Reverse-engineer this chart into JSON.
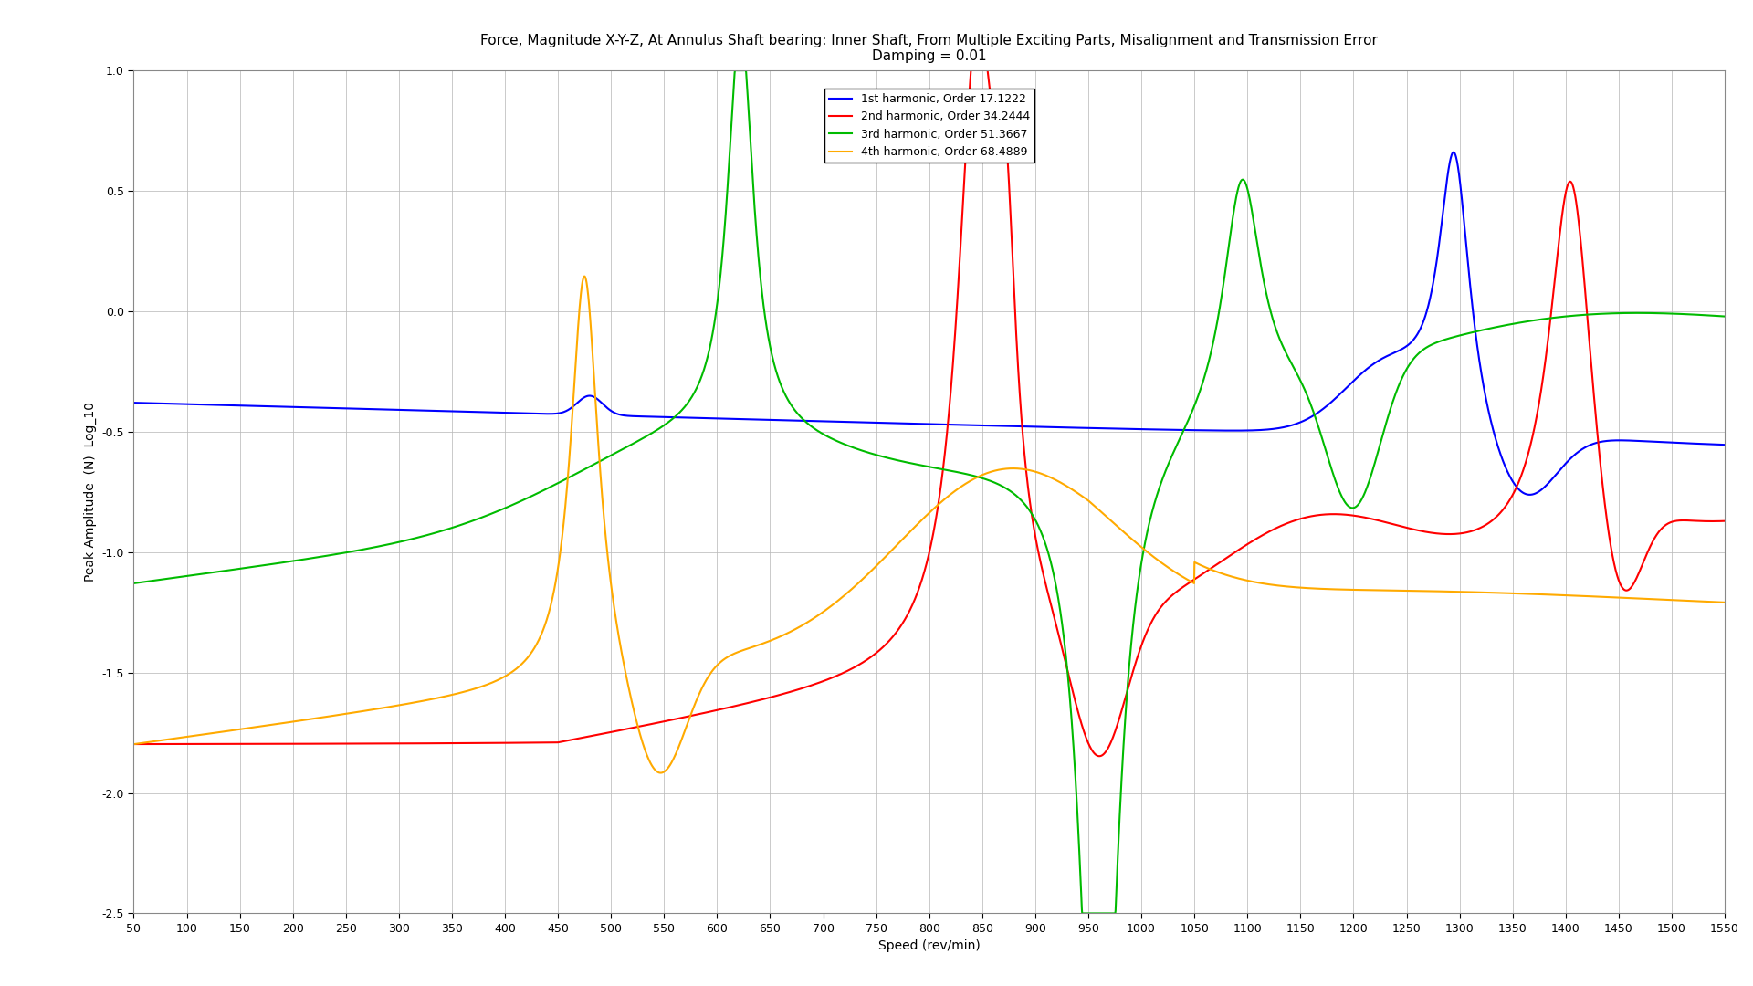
{
  "title_line1": "Force, Magnitude X-Y-Z, At Annulus Shaft bearing: Inner Shaft, From Multiple Exciting Parts, Misalignment and Transmission Error",
  "title_line2": "Damping = 0.01",
  "xlabel": "Speed (rev/min)",
  "ylabel": "Peak Amplitude  (N)  Log_10",
  "xlim": [
    50,
    1550
  ],
  "ylim": [
    -2.5,
    1.0
  ],
  "xticks": [
    50,
    100,
    150,
    200,
    250,
    300,
    350,
    400,
    450,
    500,
    550,
    600,
    650,
    700,
    750,
    800,
    850,
    900,
    950,
    1000,
    1050,
    1100,
    1150,
    1200,
    1250,
    1300,
    1350,
    1400,
    1450,
    1500,
    1550
  ],
  "yticks": [
    -2.5,
    -2.0,
    -1.5,
    -1.0,
    -0.5,
    0.0,
    0.5,
    1.0
  ],
  "colors": {
    "h1": "#0000ff",
    "h2": "#ff0000",
    "h3": "#00bb00",
    "h4": "#ffaa00"
  },
  "legend_labels": [
    "1st harmonic, Order 17.1222",
    "2nd harmonic, Order 34.2444",
    "3rd harmonic, Order 51.3667",
    "4th harmonic, Order 68.4889"
  ],
  "background_color": "#ffffff",
  "grid_color": "#bbbbbb",
  "title_fontsize": 11,
  "label_fontsize": 10,
  "tick_fontsize": 9,
  "legend_fontsize": 9,
  "line_width": 1.5
}
